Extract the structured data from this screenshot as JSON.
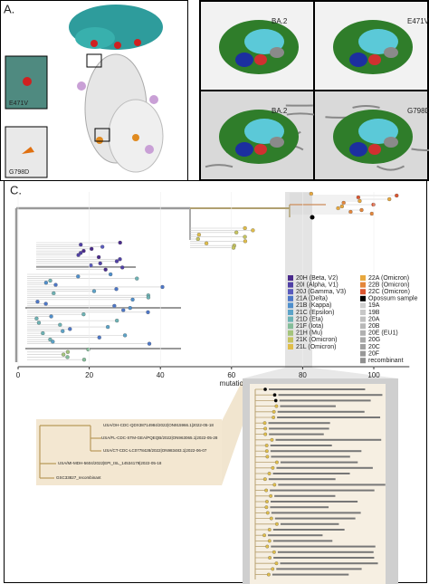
{
  "panel_a": {
    "label": "A.",
    "left_callouts": [
      "E471V",
      "G798D"
    ],
    "right_labels": [
      "BA.2",
      "E471V",
      "BA.2",
      "G798D"
    ]
  },
  "panel_c": {
    "label": "C.",
    "x_axis": {
      "title": "mutations",
      "ticks": [
        0,
        20,
        40,
        60,
        80,
        100
      ]
    },
    "legend": [
      {
        "name": "20H (Beta, V2)",
        "color": "#4a2a8c"
      },
      {
        "name": "20I (Alpha, V1)",
        "color": "#5040a6"
      },
      {
        "name": "20J (Gamma, V3)",
        "color": "#5a5bbd"
      },
      {
        "name": "21A (Delta)",
        "color": "#4d77c8"
      },
      {
        "name": "21B (Kappa)",
        "color": "#4f8fcc"
      },
      {
        "name": "21C (Epsilon)",
        "color": "#5ca3c8"
      },
      {
        "name": "21D (Eta)",
        "color": "#6db3b5"
      },
      {
        "name": "21F (Iota)",
        "color": "#84bd99"
      },
      {
        "name": "21H (Mu)",
        "color": "#a4c47c"
      },
      {
        "name": "21K (Omicron)",
        "color": "#c6c45f"
      },
      {
        "name": "21L (Omicron)",
        "color": "#e0bd4a"
      },
      {
        "name": "22A (Omicron)",
        "color": "#e8a83e"
      },
      {
        "name": "22B (Omicron)",
        "color": "#e4863a"
      },
      {
        "name": "22C (Omicron)",
        "color": "#dc5630"
      },
      {
        "name": "Opossum sample",
        "color": "#000000"
      },
      {
        "name": "19A",
        "color": "#d0d0d0"
      },
      {
        "name": "19B",
        "color": "#c8c8c8"
      },
      {
        "name": "20A",
        "color": "#c0c0c0"
      },
      {
        "name": "20B",
        "color": "#b8b8b8"
      },
      {
        "name": "20E (EU1)",
        "color": "#b0b0b0"
      },
      {
        "name": "20G",
        "color": "#a8a8a8"
      },
      {
        "name": "20C",
        "color": "#a0a0a0"
      },
      {
        "name": "20F",
        "color": "#989898"
      },
      {
        "name": "recombinant",
        "color": "#909090"
      }
    ],
    "zoom_labels": [
      "USA/OH-CDC-QDX38714984/2022|ON915966.1|2022-05-18",
      "USA/FL-CDC-STM-GEA/PQEQB/2022|ON963065.1|2022-05-28",
      "USA/CT-CDC-LC0778428/2022|ON983483.1|2022-06-07",
      "USA/MI-MDH-5604/2022|EPI_ISL_14534179|2022-05-18",
      "GSC33827_recombinant"
    ]
  }
}
